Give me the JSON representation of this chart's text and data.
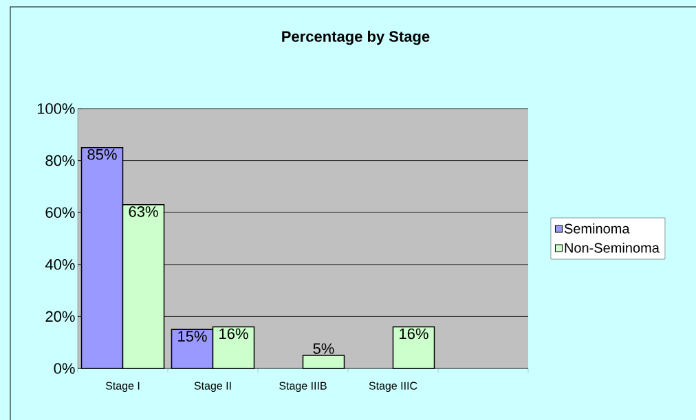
{
  "chart_data": {
    "type": "bar",
    "title": "Percentage by Stage",
    "categories": [
      "Stage I",
      "Stage II",
      "Stage IIIB",
      "Stage IIIC",
      null
    ],
    "series": [
      {
        "name": "Seminoma",
        "color": "#9999ff",
        "values": [
          85,
          15,
          null,
          null,
          null
        ],
        "value_labels": [
          "85%",
          "15%",
          null,
          null,
          null
        ]
      },
      {
        "name": "Non-Seminoma",
        "color": "#ccffcc",
        "values": [
          63,
          16,
          5,
          16,
          null
        ],
        "value_labels": [
          "63%",
          "16%",
          "5%",
          "16%",
          null
        ]
      }
    ],
    "ylim": [
      0,
      100
    ],
    "yticks": [
      {
        "value": 0,
        "label": "0%"
      },
      {
        "value": 20,
        "label": "20%"
      },
      {
        "value": 40,
        "label": "40%"
      },
      {
        "value": 60,
        "label": "60%"
      },
      {
        "value": 80,
        "label": "80%"
      },
      {
        "value": 100,
        "label": "100%"
      }
    ],
    "grid": "y",
    "legend": "right"
  }
}
